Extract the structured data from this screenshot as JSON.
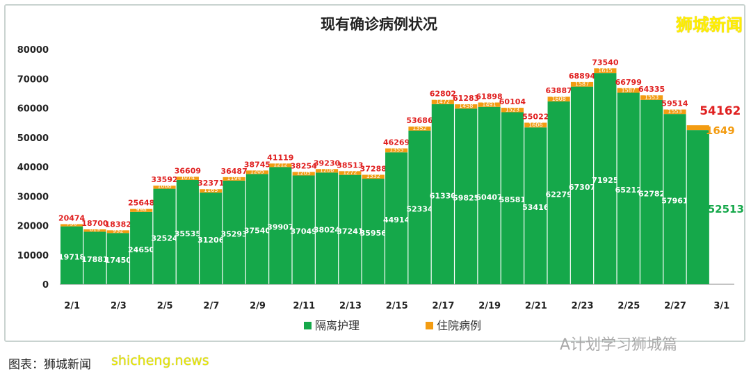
{
  "chart_data": {
    "type": "bar",
    "stacked": true,
    "title": "现有确诊病例状况",
    "xlabel": "",
    "ylabel": "",
    "ylim": [
      0,
      80000
    ],
    "yticks": [
      0,
      10000,
      20000,
      30000,
      40000,
      50000,
      60000,
      70000,
      80000
    ],
    "xtick_labels": [
      "2/1",
      "2/3",
      "2/5",
      "2/7",
      "2/9",
      "2/11",
      "2/13",
      "2/15",
      "2/17",
      "2/19",
      "2/21",
      "2/23",
      "2/25",
      "2/27",
      "3/1"
    ],
    "categories": [
      "2/1",
      "2/2",
      "2/3",
      "2/4",
      "2/5",
      "2/6",
      "2/7",
      "2/8",
      "2/9",
      "2/10",
      "2/11",
      "2/12",
      "2/13",
      "2/14",
      "2/15",
      "2/16",
      "2/17",
      "2/18",
      "2/19",
      "2/20",
      "2/21",
      "2/22",
      "2/23",
      "2/24",
      "2/25",
      "2/26",
      "2/27",
      "2/28"
    ],
    "series": [
      {
        "name": "隔离护理",
        "color": "#15a84a",
        "values": [
          19718,
          17881,
          17450,
          24650,
          32524,
          35535,
          31206,
          35293,
          37540,
          39907,
          37049,
          38024,
          37241,
          35956,
          44914,
          52334,
          61330,
          59825,
          60407,
          58581,
          53416,
          62279,
          67307,
          71925,
          65212,
          62782,
          57961,
          52513
        ]
      },
      {
        "name": "住院病例",
        "color": "#f39c12",
        "values": [
          756,
          819,
          932,
          998,
          1068,
          1074,
          1165,
          1194,
          1205,
          1212,
          1205,
          1206,
          1272,
          1332,
          1355,
          1352,
          1472,
          1458,
          1491,
          1523,
          1606,
          1608,
          1587,
          1615,
          1587,
          1553,
          1553,
          1649
        ]
      }
    ],
    "totals": [
      20474,
      18700,
      18382,
      25648,
      33592,
      36609,
      32371,
      36487,
      38745,
      41119,
      38254,
      39230,
      38513,
      37288,
      46269,
      53686,
      62802,
      61283,
      61898,
      60104,
      55022,
      63887,
      68894,
      73540,
      66799,
      64335,
      59514,
      54162
    ],
    "legend": "bottom",
    "grid": false
  },
  "brand": "狮城新闻",
  "source": "图表：狮城新闻",
  "source_url": "shicheng.news",
  "watermark": "A计划学习狮城篇"
}
